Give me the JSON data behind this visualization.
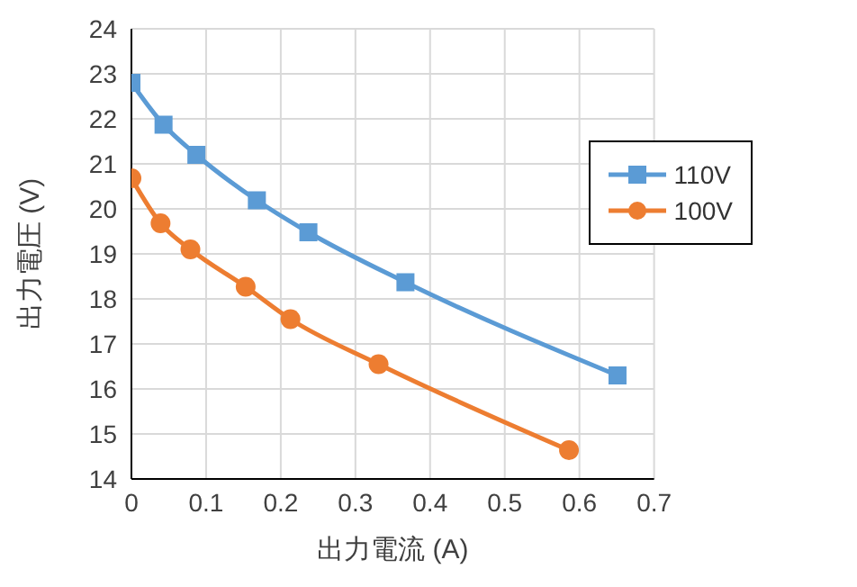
{
  "chart_data": {
    "type": "line",
    "xlabel": "出力電流 (A)",
    "ylabel": "出力電圧 (V)",
    "xlim": [
      0,
      0.7
    ],
    "xticks": [
      0,
      0.1,
      0.2,
      0.3,
      0.4,
      0.5,
      0.6,
      0.7
    ],
    "ylim": [
      14,
      24
    ],
    "yticks": [
      14,
      15,
      16,
      17,
      18,
      19,
      20,
      21,
      22,
      23,
      24
    ],
    "grid": true,
    "legend": "right",
    "series": [
      {
        "name": "110V",
        "color": "#5b9bd5",
        "marker": "square",
        "x": [
          0,
          0.043,
          0.087,
          0.168,
          0.237,
          0.367,
          0.651
        ],
        "values": [
          22.8,
          21.87,
          21.2,
          20.19,
          19.48,
          18.37,
          16.3
        ]
      },
      {
        "name": "100V",
        "color": "#ed7d31",
        "marker": "circle",
        "x": [
          0,
          0.039,
          0.079,
          0.153,
          0.213,
          0.331,
          0.586
        ],
        "values": [
          20.68,
          19.68,
          19.1,
          18.27,
          17.55,
          16.55,
          14.64
        ]
      }
    ]
  }
}
